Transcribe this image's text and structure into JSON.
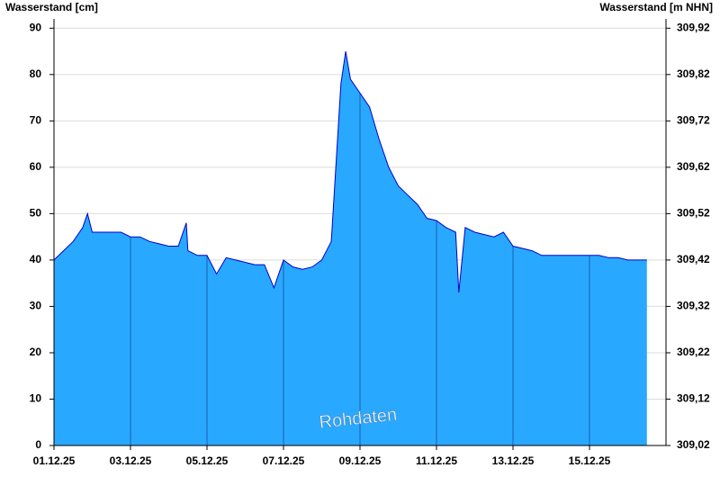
{
  "chart_data": {
    "type": "area",
    "ylabel": "Wasserstand [cm]",
    "y2label": "Wasserstand [m NHN]",
    "watermark": "Rohdaten",
    "color": "#29a8ff",
    "line_color": "#0000cc",
    "grid": true,
    "x": [
      "2025-12-01T00:00",
      "2025-12-01T06:00",
      "2025-12-01T12:00",
      "2025-12-01T18:00",
      "2025-12-01T21:00",
      "2025-12-02T00:00",
      "2025-12-02T06:00",
      "2025-12-02T12:00",
      "2025-12-02T18:00",
      "2025-12-03T00:00",
      "2025-12-03T06:00",
      "2025-12-03T12:00",
      "2025-12-03T18:00",
      "2025-12-04T00:00",
      "2025-12-04T06:00",
      "2025-12-04T11:00",
      "2025-12-04T12:00",
      "2025-12-04T18:00",
      "2025-12-05T00:00",
      "2025-12-05T06:00",
      "2025-12-05T12:00",
      "2025-12-05T18:00",
      "2025-12-06T00:00",
      "2025-12-06T06:00",
      "2025-12-06T12:00",
      "2025-12-06T18:00",
      "2025-12-07T00:00",
      "2025-12-07T06:00",
      "2025-12-07T12:00",
      "2025-12-07T18:00",
      "2025-12-08T00:00",
      "2025-12-08T06:00",
      "2025-12-08T12:00",
      "2025-12-08T15:00",
      "2025-12-08T18:00",
      "2025-12-09T00:00",
      "2025-12-09T06:00",
      "2025-12-09T12:00",
      "2025-12-09T18:00",
      "2025-12-10T00:00",
      "2025-12-10T06:00",
      "2025-12-10T12:00",
      "2025-12-10T18:00",
      "2025-12-11T00:00",
      "2025-12-11T06:00",
      "2025-12-11T12:00",
      "2025-12-11T14:00",
      "2025-12-11T18:00",
      "2025-12-12T00:00",
      "2025-12-12T06:00",
      "2025-12-12T12:00",
      "2025-12-12T18:00",
      "2025-12-13T00:00",
      "2025-12-13T06:00",
      "2025-12-13T12:00",
      "2025-12-13T18:00",
      "2025-12-14T00:00",
      "2025-12-14T06:00",
      "2025-12-14T12:00",
      "2025-12-14T18:00",
      "2025-12-15T00:00",
      "2025-12-15T06:00",
      "2025-12-15T12:00",
      "2025-12-15T18:00",
      "2025-12-16T00:00",
      "2025-12-16T06:00",
      "2025-12-16T12:00"
    ],
    "values": [
      40,
      42,
      44,
      47,
      50,
      46,
      46,
      46,
      46,
      45,
      45,
      44,
      43.5,
      43,
      43,
      48,
      42,
      41,
      41,
      37,
      40.5,
      40,
      39.5,
      39,
      39,
      34,
      40,
      38.5,
      38,
      38.5,
      40,
      44,
      78,
      85,
      79,
      76,
      73,
      66,
      60,
      56,
      54,
      52,
      49,
      48.5,
      47,
      46,
      33,
      47,
      46,
      45.5,
      45,
      46,
      43,
      42.5,
      42,
      41,
      41,
      41,
      41,
      41,
      41,
      41,
      40.5,
      40.5,
      40,
      40,
      40
    ],
    "xlim": [
      "2025-12-01",
      "2025-12-17"
    ],
    "xticks": [
      {
        "value": "2025-12-01",
        "label": "01.12.25"
      },
      {
        "value": "2025-12-03",
        "label": "03.12.25"
      },
      {
        "value": "2025-12-05",
        "label": "05.12.25"
      },
      {
        "value": "2025-12-07",
        "label": "07.12.25"
      },
      {
        "value": "2025-12-09",
        "label": "09.12.25"
      },
      {
        "value": "2025-12-11",
        "label": "11.12.25"
      },
      {
        "value": "2025-12-13",
        "label": "13.12.25"
      },
      {
        "value": "2025-12-15",
        "label": "15.12.25"
      }
    ],
    "ylim": [
      0,
      92
    ],
    "yticks": [
      0,
      10,
      20,
      30,
      40,
      50,
      60,
      70,
      80,
      90
    ],
    "y2lim": [
      309.02,
      309.94
    ],
    "y2ticks": [
      {
        "value": 309.02,
        "label": "309,02"
      },
      {
        "value": 309.12,
        "label": "309,12"
      },
      {
        "value": 309.22,
        "label": "309,22"
      },
      {
        "value": 309.32,
        "label": "309,32"
      },
      {
        "value": 309.42,
        "label": "309,42"
      },
      {
        "value": 309.52,
        "label": "309,52"
      },
      {
        "value": 309.62,
        "label": "309,62"
      },
      {
        "value": 309.72,
        "label": "309,72"
      },
      {
        "value": 309.82,
        "label": "309,82"
      },
      {
        "value": 309.92,
        "label": "309,92"
      }
    ]
  }
}
